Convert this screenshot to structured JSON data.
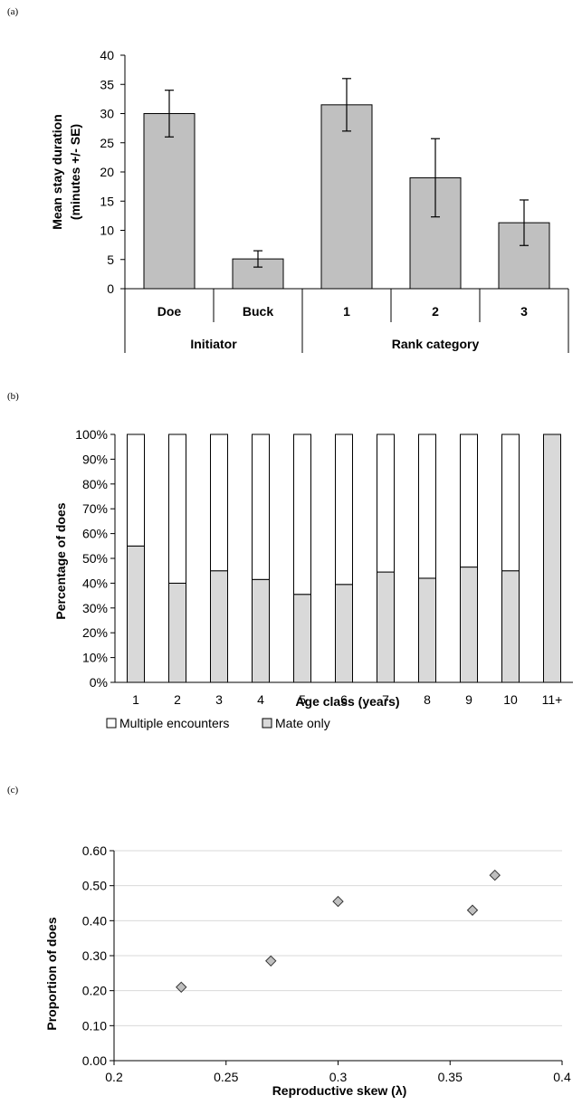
{
  "panels": {
    "a": "(a)",
    "b": "(b)",
    "c": "(c)"
  },
  "chart_data": [
    {
      "type": "bar",
      "ylabel_lines": [
        "Mean stay duration",
        "(minutes +/- SE)"
      ],
      "ylim": [
        0,
        40
      ],
      "yticks": [
        0,
        5,
        10,
        15,
        20,
        25,
        30,
        35,
        40
      ],
      "categories": [
        "Doe",
        "Buck",
        "1",
        "2",
        "3"
      ],
      "groups": [
        {
          "label": "Initiator",
          "members": [
            "Doe",
            "Buck"
          ]
        },
        {
          "label": "Rank category",
          "members": [
            "1",
            "2",
            "3"
          ]
        }
      ],
      "values": [
        30,
        5.1,
        31.5,
        19,
        11.3
      ],
      "errors": [
        4,
        1.4,
        4.5,
        6.7,
        3.9
      ],
      "bar_color": "#c0c0c0"
    },
    {
      "type": "bar",
      "stacked": true,
      "xlabel": "Age class (years)",
      "ylabel": "Percentage of does",
      "ylim": [
        0,
        100
      ],
      "yticks": [
        "0%",
        "10%",
        "20%",
        "30%",
        "40%",
        "50%",
        "60%",
        "70%",
        "80%",
        "90%",
        "100%"
      ],
      "categories": [
        "1",
        "2",
        "3",
        "4",
        "5",
        "6",
        "7",
        "8",
        "9",
        "10",
        "11+"
      ],
      "series": [
        {
          "name": "Mate only",
          "values": [
            55,
            40,
            45,
            41.5,
            35.5,
            39.5,
            44.5,
            42,
            46.5,
            45,
            100
          ],
          "color": "#d9d9d9"
        },
        {
          "name": "Multiple encounters",
          "values": [
            45,
            60,
            55,
            58.5,
            64.5,
            60.5,
            55.5,
            58,
            53.5,
            55,
            0
          ],
          "color": "#ffffff"
        }
      ],
      "legend_position": "bottom-left"
    },
    {
      "type": "scatter",
      "xlabel": "Reproductive skew (λ)",
      "ylabel": "Proportion of does",
      "xlim": [
        0.2,
        0.4
      ],
      "ylim": [
        0,
        0.6
      ],
      "xticks": [
        "0.2",
        "0.25",
        "0.3",
        "0.35",
        "0.4"
      ],
      "yticks": [
        "0.00",
        "0.10",
        "0.20",
        "0.30",
        "0.40",
        "0.50",
        "0.60"
      ],
      "points": [
        {
          "x": 0.23,
          "y": 0.21
        },
        {
          "x": 0.27,
          "y": 0.285
        },
        {
          "x": 0.3,
          "y": 0.455
        },
        {
          "x": 0.36,
          "y": 0.43
        },
        {
          "x": 0.37,
          "y": 0.53
        }
      ],
      "marker": "diamond",
      "marker_color": "#bfbfbf"
    }
  ]
}
